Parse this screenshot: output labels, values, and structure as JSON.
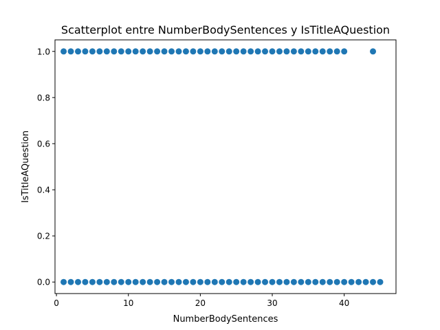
{
  "chart_data": {
    "type": "scatter",
    "title": "Scatterplot entre NumberBodySentences y IsTitleAQuestion",
    "xlabel": "NumberBodySentences",
    "ylabel": "IsTitleAQuestion",
    "xlim": [
      -0.2,
      47.2
    ],
    "ylim": [
      -0.05,
      1.05
    ],
    "x_ticks": [
      0,
      10,
      20,
      30,
      40
    ],
    "y_ticks": [
      0.0,
      0.2,
      0.4,
      0.6,
      0.8,
      1.0
    ],
    "x_tick_labels": [
      "0",
      "10",
      "20",
      "30",
      "40"
    ],
    "y_tick_labels": [
      "0.0",
      "0.2",
      "0.4",
      "0.6",
      "0.8",
      "1.0"
    ],
    "grid": false,
    "marker_color": "#1f77b4",
    "series": [
      {
        "x": [
          1,
          2,
          3,
          4,
          5,
          6,
          7,
          8,
          9,
          10,
          11,
          12,
          13,
          14,
          15,
          16,
          17,
          18,
          19,
          20,
          21,
          22,
          23,
          24,
          25,
          26,
          27,
          28,
          29,
          30,
          31,
          32,
          33,
          34,
          35,
          36,
          37,
          38,
          39,
          40,
          44
        ],
        "y": [
          1,
          1,
          1,
          1,
          1,
          1,
          1,
          1,
          1,
          1,
          1,
          1,
          1,
          1,
          1,
          1,
          1,
          1,
          1,
          1,
          1,
          1,
          1,
          1,
          1,
          1,
          1,
          1,
          1,
          1,
          1,
          1,
          1,
          1,
          1,
          1,
          1,
          1,
          1,
          1,
          1
        ]
      },
      {
        "x": [
          1,
          2,
          3,
          4,
          5,
          6,
          7,
          8,
          9,
          10,
          11,
          12,
          13,
          14,
          15,
          16,
          17,
          18,
          19,
          20,
          21,
          22,
          23,
          24,
          25,
          26,
          27,
          28,
          29,
          30,
          31,
          32,
          33,
          34,
          35,
          36,
          37,
          38,
          39,
          40,
          41,
          42,
          43,
          44,
          45
        ],
        "y": [
          0,
          0,
          0,
          0,
          0,
          0,
          0,
          0,
          0,
          0,
          0,
          0,
          0,
          0,
          0,
          0,
          0,
          0,
          0,
          0,
          0,
          0,
          0,
          0,
          0,
          0,
          0,
          0,
          0,
          0,
          0,
          0,
          0,
          0,
          0,
          0,
          0,
          0,
          0,
          0,
          0,
          0,
          0,
          0,
          0
        ]
      }
    ]
  }
}
